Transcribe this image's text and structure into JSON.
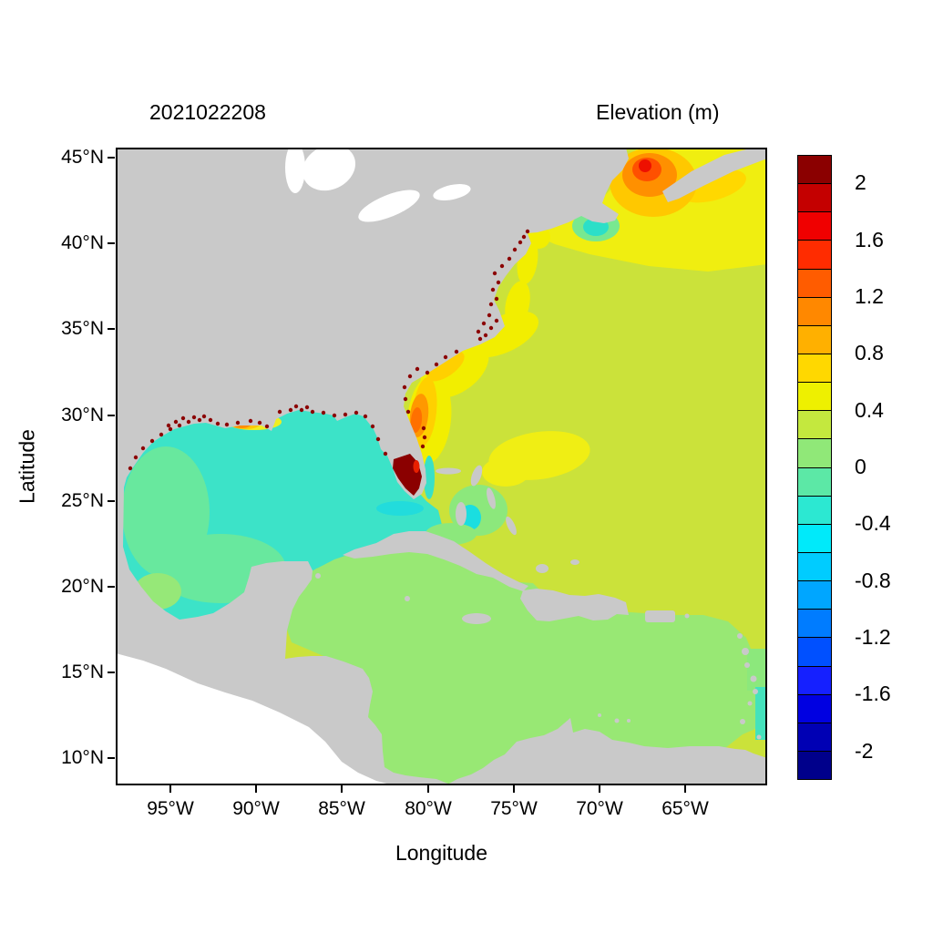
{
  "header": {
    "timestamp_title": "2021022208",
    "colorbar_title": "Elevation (m)"
  },
  "axes": {
    "x_label": "Longitude",
    "y_label": "Latitude",
    "x_tick_labels": [
      "95°W",
      "90°W",
      "85°W",
      "80°W",
      "75°W",
      "70°W",
      "65°W"
    ],
    "y_tick_labels": [
      "45°N",
      "40°N",
      "35°N",
      "30°N",
      "25°N",
      "20°N",
      "15°N",
      "10°N"
    ]
  },
  "colorbar": {
    "tick_labels": [
      "2",
      "1.6",
      "1.2",
      "0.8",
      "0.4",
      "0",
      "-0.4",
      "-0.8",
      "-1.2",
      "-1.6",
      "-2"
    ],
    "band_colors": [
      "#00008b",
      "#0000b4",
      "#0000e1",
      "#1520ff",
      "#0050ff",
      "#007cff",
      "#00a6ff",
      "#00ccff",
      "#00eafa",
      "#2ce8d2",
      "#5ce8a6",
      "#90e878",
      "#c4e83e",
      "#eef000",
      "#ffd800",
      "#ffb000",
      "#ff8800",
      "#ff5c00",
      "#ff2c00",
      "#f00000",
      "#c40000",
      "#8b0000"
    ]
  },
  "colors": {
    "land": "#c9c9c9",
    "unmodeled_water": "#ffffff",
    "atlantic": "#cbe23a",
    "gulf": "#3ce3c8",
    "caribbean": "#98e874",
    "extreme_high": "#8b0000"
  },
  "chart_data": {
    "type": "heatmap",
    "title": "2021022208",
    "colorbar_title": "Elevation (m)",
    "xlabel": "Longitude",
    "ylabel": "Latitude",
    "x_ticks": [
      "95°W",
      "90°W",
      "85°W",
      "80°W",
      "75°W",
      "70°W",
      "65°W"
    ],
    "y_ticks": [
      "10°N",
      "15°N",
      "20°N",
      "25°N",
      "30°N",
      "35°N",
      "40°N",
      "45°N"
    ],
    "xlim_deg_west": [
      98,
      60
    ],
    "ylim_deg_north": [
      8.4,
      45.7
    ],
    "colorbar_range_m": [
      -2,
      2
    ],
    "colorbar_band_step_m": 0.2,
    "colorbar_tick_values": [
      2,
      1.6,
      1.2,
      0.8,
      0.4,
      0,
      -0.4,
      -0.8,
      -1.2,
      -1.6,
      -2
    ],
    "grid": false,
    "legend_position": "right-colorbar",
    "regions": [
      {
        "area": "Gulf of Mexico (central basin)",
        "elevation_m": -0.3
      },
      {
        "area": "Gulf of Mexico (western / Bay of Campeche)",
        "elevation_m": -0.1
      },
      {
        "area": "Caribbean Sea",
        "elevation_m": 0.1
      },
      {
        "area": "Open Atlantic (Sargasso)",
        "elevation_m": 0.3
      },
      {
        "area": "Mid-Atlantic patch near 27N 73W",
        "elevation_m": 0.5
      },
      {
        "area": "Offshore Georgia / South Carolina shelf",
        "elevation_m": 0.9
      },
      {
        "area": "US east coast shelf band (FL to Hatteras)",
        "elevation_m": 0.5
      },
      {
        "area": "South Florida east coast (flooded cells)",
        "elevation_m": 2.0
      },
      {
        "area": "Gulf of Maine / Georges Bank",
        "elevation_m": 0.5
      },
      {
        "area": "Bay of Fundy / SW Nova Scotia core",
        "elevation_m": 1.5
      },
      {
        "area": "Nantucket Shoals spot",
        "elevation_m": -0.3
      },
      {
        "area": "Louisiana coast spot",
        "elevation_m": 0.9
      },
      {
        "area": "Coastal wet/dry speckles along Gulf and east coasts",
        "elevation_m": 2.0
      },
      {
        "area": "Land",
        "elevation_m": null
      },
      {
        "area": "Pacific (outside model mesh, white)",
        "elevation_m": null
      }
    ]
  }
}
